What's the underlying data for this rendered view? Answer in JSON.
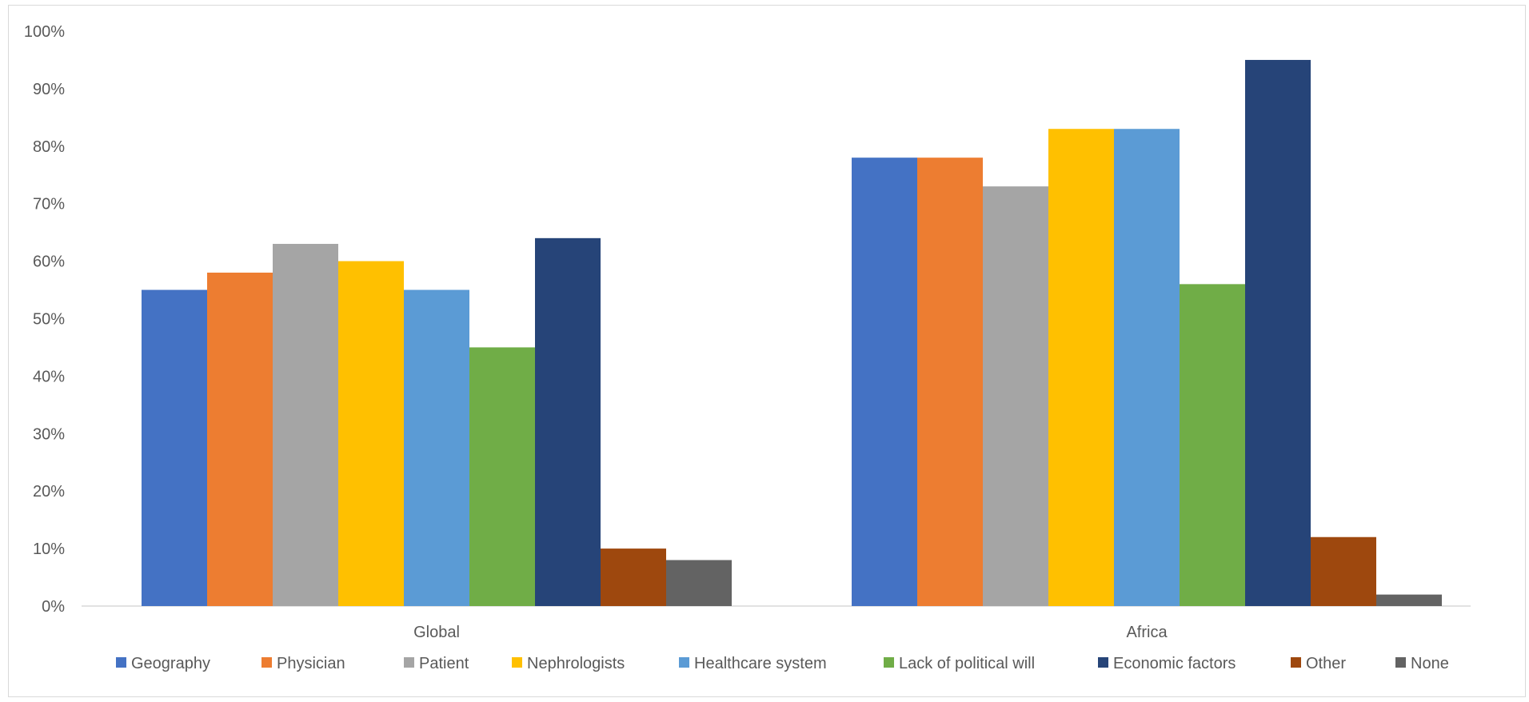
{
  "chart_data": {
    "type": "bar",
    "categories": [
      "Global",
      "Africa"
    ],
    "series": [
      {
        "name": "Geography",
        "color": "#4472C4",
        "values": [
          55,
          78
        ]
      },
      {
        "name": "Physician",
        "color": "#ED7D31",
        "values": [
          58,
          78
        ]
      },
      {
        "name": "Patient",
        "color": "#A5A5A5",
        "values": [
          63,
          73
        ]
      },
      {
        "name": "Nephrologists",
        "color": "#FFC000",
        "values": [
          60,
          83
        ]
      },
      {
        "name": "Healthcare system",
        "color": "#5B9BD5",
        "values": [
          55,
          83
        ]
      },
      {
        "name": "Lack of political will",
        "color": "#70AD47",
        "values": [
          45,
          56
        ]
      },
      {
        "name": "Economic factors",
        "color": "#264478",
        "values": [
          64,
          95
        ]
      },
      {
        "name": "Other",
        "color": "#9E480E",
        "values": [
          10,
          12
        ]
      },
      {
        "name": "None",
        "color": "#636363",
        "values": [
          8,
          2
        ]
      }
    ],
    "yticks": [
      "0%",
      "10%",
      "20%",
      "30%",
      "40%",
      "50%",
      "60%",
      "70%",
      "80%",
      "90%",
      "100%"
    ],
    "ylim": [
      0,
      100
    ],
    "grid": false,
    "legend_position": "bottom",
    "title": "",
    "xlabel": "",
    "ylabel": ""
  }
}
